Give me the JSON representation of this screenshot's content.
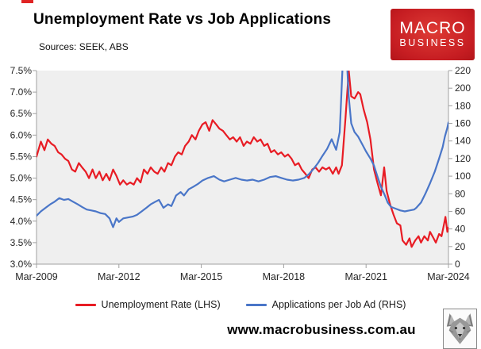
{
  "header": {
    "title": "Unemployment Rate vs Job Applications",
    "sources": "Sources: SEEK, ABS"
  },
  "logo": {
    "line1": "MACRO",
    "line2": "BUSINESS",
    "bg_color": "#c61d22",
    "text_color": "#ffffff"
  },
  "legend": [
    {
      "label": "Unemployment Rate (LHS)",
      "color": "#e81c24"
    },
    {
      "label": "Applications per Job Ad (RHS)",
      "color": "#4a76c8"
    }
  ],
  "footer": {
    "url": "www.macrobusiness.com.au",
    "icon": "wolf-logo"
  },
  "chart_data": {
    "type": "line",
    "title": "Unemployment Rate vs Job Applications",
    "plot_bg": "#efefef",
    "axis_color": "#a0a0a0",
    "label_color": "#262626",
    "x_range": [
      2009.17,
      2024.17
    ],
    "x_ticks": [
      2009.17,
      2012.17,
      2015.17,
      2018.17,
      2021.17,
      2024.17
    ],
    "x_tick_labels": [
      "Mar-2009",
      "Mar-2012",
      "Mar-2015",
      "Mar-2018",
      "Mar-2021",
      "Mar-2024"
    ],
    "left_axis": {
      "min": 3.0,
      "max": 7.5,
      "tick_values": [
        3.0,
        3.5,
        4.0,
        4.5,
        5.0,
        5.5,
        6.0,
        6.5,
        7.0,
        7.5
      ],
      "tick_labels": [
        "3.0%",
        "3.5%",
        "4.0%",
        "4.5%",
        "5.0%",
        "5.5%",
        "6.0%",
        "6.5%",
        "7.0%",
        "7.5%"
      ]
    },
    "right_axis": {
      "min": 0,
      "max": 220,
      "tick_values": [
        0,
        20,
        40,
        60,
        80,
        100,
        120,
        140,
        160,
        180,
        200,
        220
      ],
      "tick_labels": [
        "0",
        "20",
        "40",
        "60",
        "80",
        "100",
        "120",
        "140",
        "160",
        "180",
        "200",
        "220"
      ]
    },
    "grid": false,
    "legend_position": "bottom",
    "series": [
      {
        "name": "Unemployment Rate (LHS)",
        "axis": "left",
        "color": "#e81c24",
        "width": 2.2,
        "points": [
          [
            2009.17,
            5.5
          ],
          [
            2009.33,
            5.85
          ],
          [
            2009.46,
            5.65
          ],
          [
            2009.58,
            5.9
          ],
          [
            2009.71,
            5.8
          ],
          [
            2009.83,
            5.75
          ],
          [
            2009.96,
            5.6
          ],
          [
            2010.08,
            5.55
          ],
          [
            2010.21,
            5.45
          ],
          [
            2010.33,
            5.4
          ],
          [
            2010.46,
            5.2
          ],
          [
            2010.58,
            5.15
          ],
          [
            2010.71,
            5.35
          ],
          [
            2010.83,
            5.25
          ],
          [
            2010.96,
            5.15
          ],
          [
            2011.08,
            5.0
          ],
          [
            2011.21,
            5.2
          ],
          [
            2011.33,
            5.0
          ],
          [
            2011.46,
            5.15
          ],
          [
            2011.58,
            4.95
          ],
          [
            2011.71,
            5.1
          ],
          [
            2011.83,
            4.95
          ],
          [
            2011.96,
            5.2
          ],
          [
            2012.08,
            5.05
          ],
          [
            2012.21,
            4.85
          ],
          [
            2012.33,
            4.95
          ],
          [
            2012.46,
            4.85
          ],
          [
            2012.58,
            4.9
          ],
          [
            2012.71,
            4.85
          ],
          [
            2012.83,
            5.0
          ],
          [
            2012.96,
            4.9
          ],
          [
            2013.08,
            5.2
          ],
          [
            2013.21,
            5.1
          ],
          [
            2013.33,
            5.25
          ],
          [
            2013.46,
            5.15
          ],
          [
            2013.58,
            5.1
          ],
          [
            2013.71,
            5.25
          ],
          [
            2013.83,
            5.15
          ],
          [
            2013.96,
            5.35
          ],
          [
            2014.08,
            5.3
          ],
          [
            2014.21,
            5.5
          ],
          [
            2014.33,
            5.6
          ],
          [
            2014.46,
            5.55
          ],
          [
            2014.58,
            5.75
          ],
          [
            2014.71,
            5.85
          ],
          [
            2014.83,
            6.0
          ],
          [
            2014.96,
            5.9
          ],
          [
            2015.08,
            6.1
          ],
          [
            2015.21,
            6.25
          ],
          [
            2015.33,
            6.3
          ],
          [
            2015.46,
            6.1
          ],
          [
            2015.58,
            6.35
          ],
          [
            2015.71,
            6.25
          ],
          [
            2015.83,
            6.15
          ],
          [
            2015.96,
            6.1
          ],
          [
            2016.08,
            6.0
          ],
          [
            2016.21,
            5.9
          ],
          [
            2016.33,
            5.95
          ],
          [
            2016.46,
            5.85
          ],
          [
            2016.58,
            5.95
          ],
          [
            2016.71,
            5.75
          ],
          [
            2016.83,
            5.85
          ],
          [
            2016.96,
            5.8
          ],
          [
            2017.08,
            5.95
          ],
          [
            2017.21,
            5.85
          ],
          [
            2017.33,
            5.9
          ],
          [
            2017.46,
            5.75
          ],
          [
            2017.58,
            5.8
          ],
          [
            2017.71,
            5.6
          ],
          [
            2017.83,
            5.65
          ],
          [
            2017.96,
            5.55
          ],
          [
            2018.08,
            5.6
          ],
          [
            2018.21,
            5.5
          ],
          [
            2018.33,
            5.55
          ],
          [
            2018.46,
            5.45
          ],
          [
            2018.58,
            5.3
          ],
          [
            2018.71,
            5.35
          ],
          [
            2018.83,
            5.2
          ],
          [
            2018.96,
            5.1
          ],
          [
            2019.08,
            5.0
          ],
          [
            2019.21,
            5.2
          ],
          [
            2019.33,
            5.25
          ],
          [
            2019.46,
            5.15
          ],
          [
            2019.58,
            5.25
          ],
          [
            2019.71,
            5.2
          ],
          [
            2019.83,
            5.25
          ],
          [
            2019.96,
            5.1
          ],
          [
            2020.08,
            5.25
          ],
          [
            2020.17,
            5.1
          ],
          [
            2020.29,
            5.3
          ],
          [
            2020.42,
            6.4
          ],
          [
            2020.54,
            7.5
          ],
          [
            2020.63,
            6.9
          ],
          [
            2020.75,
            6.85
          ],
          [
            2020.88,
            7.0
          ],
          [
            2020.96,
            6.95
          ],
          [
            2021.08,
            6.6
          ],
          [
            2021.21,
            6.3
          ],
          [
            2021.33,
            5.9
          ],
          [
            2021.46,
            5.2
          ],
          [
            2021.58,
            4.9
          ],
          [
            2021.71,
            4.6
          ],
          [
            2021.83,
            5.25
          ],
          [
            2021.92,
            4.7
          ],
          [
            2022.04,
            4.4
          ],
          [
            2022.17,
            4.15
          ],
          [
            2022.29,
            3.95
          ],
          [
            2022.42,
            3.9
          ],
          [
            2022.5,
            3.55
          ],
          [
            2022.63,
            3.45
          ],
          [
            2022.75,
            3.6
          ],
          [
            2022.83,
            3.4
          ],
          [
            2022.96,
            3.55
          ],
          [
            2023.08,
            3.65
          ],
          [
            2023.17,
            3.5
          ],
          [
            2023.29,
            3.65
          ],
          [
            2023.42,
            3.55
          ],
          [
            2023.5,
            3.75
          ],
          [
            2023.63,
            3.6
          ],
          [
            2023.71,
            3.5
          ],
          [
            2023.83,
            3.7
          ],
          [
            2023.92,
            3.65
          ],
          [
            2024.0,
            3.9
          ],
          [
            2024.06,
            4.1
          ],
          [
            2024.13,
            3.75
          ],
          [
            2024.17,
            3.85
          ]
        ]
      },
      {
        "name": "Applications per Job Ad (RHS)",
        "axis": "right",
        "color": "#4a76c8",
        "width": 2.2,
        "points": [
          [
            2009.17,
            55
          ],
          [
            2009.33,
            60
          ],
          [
            2009.5,
            64
          ],
          [
            2009.67,
            68
          ],
          [
            2009.83,
            71
          ],
          [
            2010.0,
            75
          ],
          [
            2010.17,
            73
          ],
          [
            2010.33,
            74
          ],
          [
            2010.5,
            71
          ],
          [
            2010.67,
            68
          ],
          [
            2010.83,
            65
          ],
          [
            2011.0,
            62
          ],
          [
            2011.17,
            61
          ],
          [
            2011.33,
            60
          ],
          [
            2011.5,
            58
          ],
          [
            2011.67,
            57
          ],
          [
            2011.83,
            52
          ],
          [
            2011.96,
            42
          ],
          [
            2012.08,
            52
          ],
          [
            2012.17,
            48
          ],
          [
            2012.33,
            52
          ],
          [
            2012.5,
            53
          ],
          [
            2012.67,
            54
          ],
          [
            2012.83,
            56
          ],
          [
            2013.0,
            60
          ],
          [
            2013.17,
            64
          ],
          [
            2013.33,
            68
          ],
          [
            2013.5,
            71
          ],
          [
            2013.63,
            73
          ],
          [
            2013.79,
            64
          ],
          [
            2013.96,
            68
          ],
          [
            2014.08,
            66
          ],
          [
            2014.25,
            78
          ],
          [
            2014.42,
            82
          ],
          [
            2014.54,
            78
          ],
          [
            2014.71,
            85
          ],
          [
            2014.88,
            88
          ],
          [
            2015.04,
            91
          ],
          [
            2015.21,
            95
          ],
          [
            2015.42,
            98
          ],
          [
            2015.63,
            100
          ],
          [
            2015.83,
            96
          ],
          [
            2016.0,
            94
          ],
          [
            2016.21,
            96
          ],
          [
            2016.42,
            98
          ],
          [
            2016.63,
            96
          ],
          [
            2016.83,
            95
          ],
          [
            2017.04,
            96
          ],
          [
            2017.25,
            94
          ],
          [
            2017.46,
            96
          ],
          [
            2017.67,
            99
          ],
          [
            2017.88,
            100
          ],
          [
            2018.08,
            98
          ],
          [
            2018.29,
            96
          ],
          [
            2018.5,
            95
          ],
          [
            2018.71,
            96
          ],
          [
            2018.92,
            98
          ],
          [
            2019.08,
            102
          ],
          [
            2019.25,
            108
          ],
          [
            2019.42,
            115
          ],
          [
            2019.58,
            123
          ],
          [
            2019.75,
            131
          ],
          [
            2019.92,
            142
          ],
          [
            2020.08,
            130
          ],
          [
            2020.21,
            150
          ],
          [
            2020.33,
            235
          ],
          [
            2020.46,
            238
          ],
          [
            2020.54,
            190
          ],
          [
            2020.63,
            160
          ],
          [
            2020.75,
            150
          ],
          [
            2020.88,
            145
          ],
          [
            2021.0,
            138
          ],
          [
            2021.17,
            128
          ],
          [
            2021.33,
            120
          ],
          [
            2021.46,
            112
          ],
          [
            2021.58,
            100
          ],
          [
            2021.71,
            88
          ],
          [
            2021.83,
            80
          ],
          [
            2021.96,
            70
          ],
          [
            2022.08,
            65
          ],
          [
            2022.25,
            63
          ],
          [
            2022.42,
            61
          ],
          [
            2022.58,
            60
          ],
          [
            2022.75,
            61
          ],
          [
            2022.92,
            62
          ],
          [
            2023.0,
            64
          ],
          [
            2023.17,
            70
          ],
          [
            2023.33,
            80
          ],
          [
            2023.5,
            92
          ],
          [
            2023.67,
            105
          ],
          [
            2023.83,
            120
          ],
          [
            2023.96,
            133
          ],
          [
            2024.04,
            145
          ],
          [
            2024.13,
            155
          ],
          [
            2024.17,
            161
          ]
        ]
      }
    ]
  }
}
